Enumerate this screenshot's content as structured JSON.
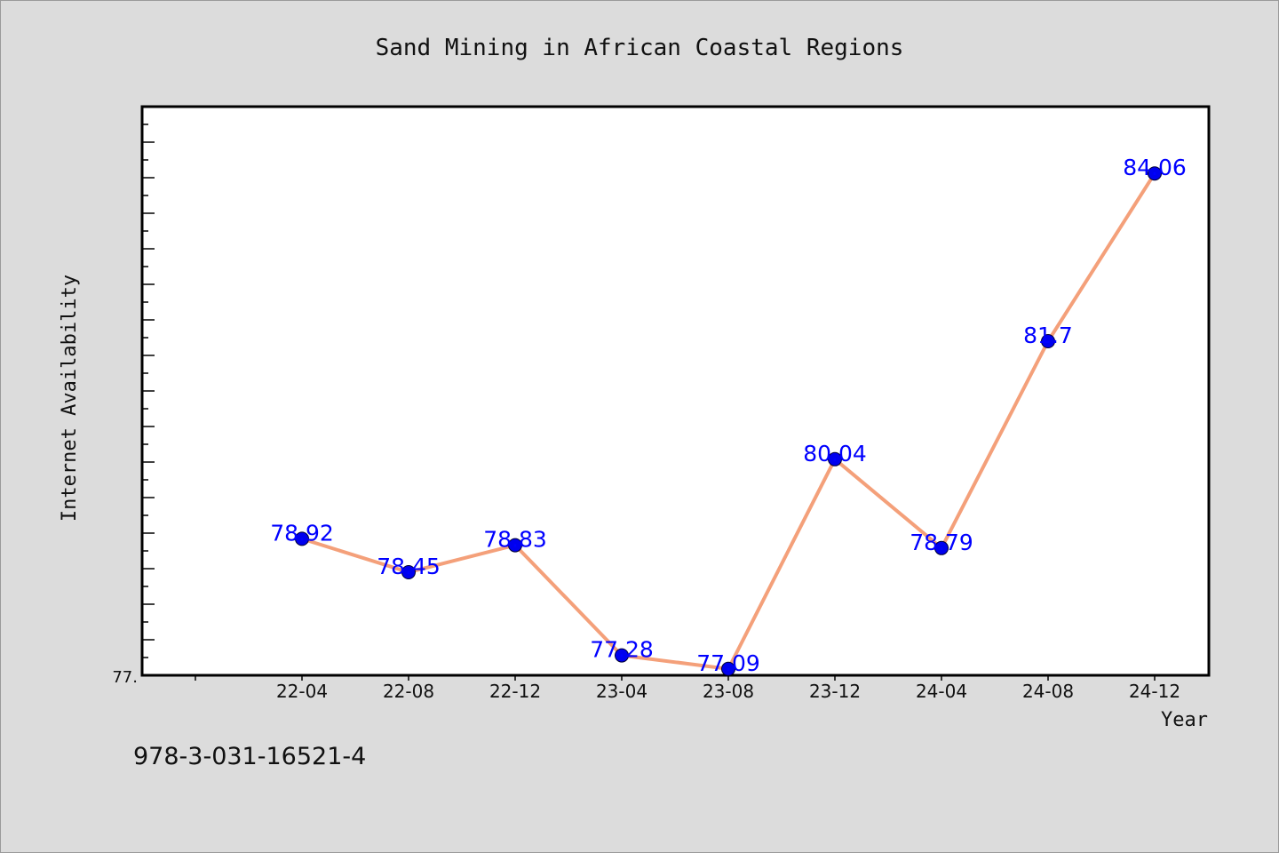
{
  "chart_data": {
    "type": "line",
    "title": "Sand Mining in African Coastal Regions",
    "xlabel": "Year",
    "ylabel": "Internet Availability",
    "categories": [
      "22-04",
      "22-08",
      "22-12",
      "23-04",
      "23-08",
      "23-12",
      "24-04",
      "24-08",
      "24-12"
    ],
    "x_tick_labels": [
      "22-04",
      "22-08",
      "22-12",
      "23-04",
      "23-08",
      "23-12",
      "24-04",
      "24-08",
      "24-12"
    ],
    "values": [
      78.92,
      78.45,
      78.83,
      77.28,
      77.09,
      80.04,
      78.79,
      81.7,
      84.06
    ],
    "point_labels": [
      "78.92",
      "78.45",
      "78.83",
      "77.28",
      "77.09",
      "80.04",
      "78.79",
      "81.7",
      "84.06"
    ],
    "y_tick_label": "77.",
    "ylim": [
      77.0,
      85.0
    ],
    "grid": false,
    "legend": "none",
    "colors": {
      "line": "#f4a07a",
      "marker": "#0000ee",
      "data_label": "#0000ff",
      "plot_background": "#ffffff",
      "figure_background": "#dcdcdc"
    }
  },
  "footer": {
    "isbn": "978-3-031-16521-4"
  }
}
